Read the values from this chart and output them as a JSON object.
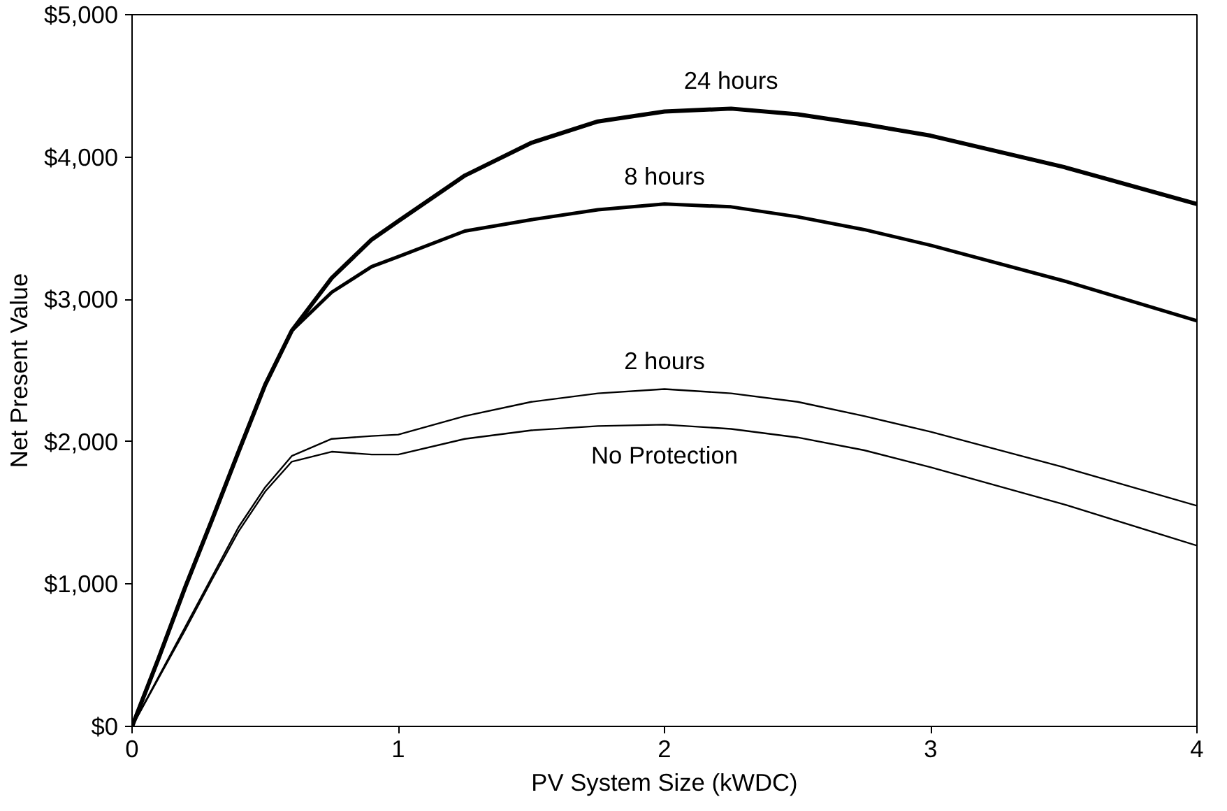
{
  "chart_data": {
    "type": "line",
    "xlabel": "PV System Size (kWDC)",
    "ylabel": "Net Present Value",
    "x": [
      0,
      0.1,
      0.2,
      0.3,
      0.4,
      0.5,
      0.6,
      0.75,
      0.9,
      1,
      1.25,
      1.5,
      1.75,
      2,
      2.25,
      2.5,
      2.75,
      3,
      3.5,
      4
    ],
    "series": [
      {
        "name": "24 hours",
        "color": "#000000",
        "values": [
          0,
          480,
          980,
          1450,
          1930,
          2400,
          2780,
          3150,
          3420,
          3550,
          3870,
          4100,
          4250,
          4320,
          4340,
          4300,
          4230,
          4150,
          3930,
          3670
        ]
      },
      {
        "name": "8 hours",
        "color": "#000000",
        "values": [
          0,
          480,
          980,
          1450,
          1930,
          2400,
          2780,
          3050,
          3230,
          3300,
          3480,
          3560,
          3630,
          3670,
          3650,
          3580,
          3490,
          3380,
          3130,
          2850
        ]
      },
      {
        "name": "2 hours",
        "color": "#000000",
        "values": [
          0,
          350,
          700,
          1050,
          1400,
          1680,
          1900,
          2020,
          2040,
          2050,
          2180,
          2280,
          2340,
          2370,
          2340,
          2280,
          2180,
          2070,
          1820,
          1550
        ]
      },
      {
        "name": "No Protection",
        "color": "#000000",
        "values": [
          0,
          340,
          680,
          1030,
          1370,
          1650,
          1860,
          1930,
          1910,
          1910,
          2020,
          2080,
          2110,
          2120,
          2090,
          2030,
          1940,
          1820,
          1560,
          1270
        ]
      }
    ],
    "xlim": [
      0,
      4
    ],
    "ylim": [
      0,
      5000
    ],
    "xticks": [
      0,
      1,
      2,
      3,
      4
    ],
    "yticks": [
      {
        "value": 0,
        "label": "$0"
      },
      {
        "value": 1000,
        "label": "$1,000"
      },
      {
        "value": 2000,
        "label": "$2,000"
      },
      {
        "value": 3000,
        "label": "$3,000"
      },
      {
        "value": 4000,
        "label": "$4,000"
      },
      {
        "value": 5000,
        "label": "$5,000"
      }
    ],
    "grid": false,
    "legend": false,
    "marker": "none",
    "line_style": "solid"
  }
}
